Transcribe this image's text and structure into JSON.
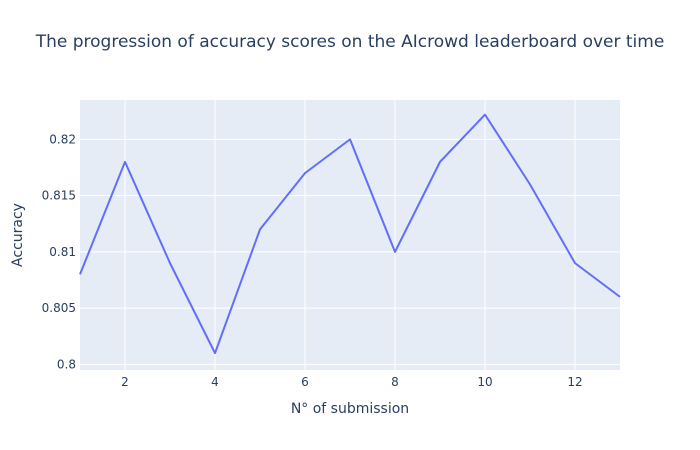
{
  "chart_data": {
    "type": "line",
    "title": "The progression of accuracy scores on the AIcrowd leaderboard over time",
    "xlabel": "N° of submission",
    "ylabel": "Accuracy",
    "xlim": [
      1,
      13
    ],
    "ylim": [
      0.7995,
      0.8235
    ],
    "x_ticks": [
      2,
      4,
      6,
      8,
      10,
      12
    ],
    "x_tick_labels": [
      "2",
      "4",
      "6",
      "8",
      "10",
      "12"
    ],
    "y_ticks": [
      0.8,
      0.805,
      0.81,
      0.815,
      0.82
    ],
    "y_tick_labels": [
      "0.8",
      "0.805",
      "0.81",
      "0.815",
      "0.82"
    ],
    "grid": true,
    "colors": {
      "line": "#636efa",
      "plot_bg": "#e5ecf6",
      "grid": "#ffffff",
      "text": "#2a3f5f"
    },
    "series": [
      {
        "x": [
          1,
          2,
          3,
          4,
          5,
          6,
          7,
          8,
          9,
          10,
          11,
          12,
          13
        ],
        "values": [
          0.808,
          0.818,
          0.809,
          0.801,
          0.812,
          0.817,
          0.82,
          0.81,
          0.818,
          0.8222,
          0.816,
          0.809,
          0.806
        ]
      }
    ]
  }
}
